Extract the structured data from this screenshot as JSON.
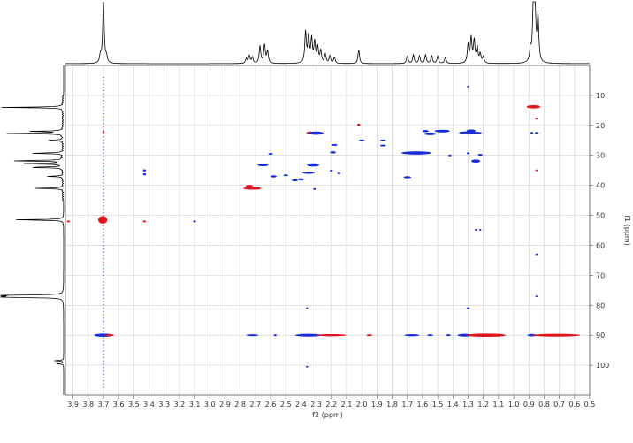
{
  "chart_data": {
    "type": "hsqc-2d-nmr",
    "xlabel": "f2 (ppm)",
    "ylabel": "f1 (ppm)",
    "xlim": [
      3.95,
      0.5
    ],
    "ylim": [
      0,
      110
    ],
    "x_ticks": [
      "3.9",
      "3.8",
      "3.7",
      "3.6",
      "3.5",
      "3.4",
      "3.3",
      "3.2",
      "3.1",
      "3.0",
      "2.9",
      "2.8",
      "2.7",
      "2.6",
      "2.5",
      "2.4",
      "2.3",
      "2.2",
      "2.1",
      "2.0",
      "1.9",
      "1.8",
      "1.7",
      "1.6",
      "1.5",
      "1.4",
      "1.3",
      "1.2",
      "1.1",
      "1.0",
      "0.9",
      "0.8",
      "0.7",
      "0.6",
      "0.5"
    ],
    "y_ticks": [
      "10",
      "20",
      "30",
      "40",
      "50",
      "60",
      "70",
      "80",
      "90",
      "100"
    ],
    "grid": true,
    "colors": {
      "positive": "#1a2ed8",
      "negative": "#e0141c",
      "trace": "#000000",
      "grid": "#cfcfcf"
    },
    "proton_spectrum_peaks": [
      {
        "ppm": 3.7,
        "h": 1.0
      },
      {
        "ppm": 3.72,
        "h": 0.12
      },
      {
        "ppm": 3.68,
        "h": 0.1
      },
      {
        "ppm": 2.76,
        "h": 0.08
      },
      {
        "ppm": 2.74,
        "h": 0.12
      },
      {
        "ppm": 2.72,
        "h": 0.1
      },
      {
        "ppm": 2.67,
        "h": 0.28
      },
      {
        "ppm": 2.64,
        "h": 0.3
      },
      {
        "ppm": 2.62,
        "h": 0.2
      },
      {
        "ppm": 2.37,
        "h": 0.5
      },
      {
        "ppm": 2.35,
        "h": 0.42
      },
      {
        "ppm": 2.33,
        "h": 0.38
      },
      {
        "ppm": 2.31,
        "h": 0.33
      },
      {
        "ppm": 2.29,
        "h": 0.25
      },
      {
        "ppm": 2.27,
        "h": 0.2
      },
      {
        "ppm": 2.24,
        "h": 0.14
      },
      {
        "ppm": 2.21,
        "h": 0.12
      },
      {
        "ppm": 2.18,
        "h": 0.1
      },
      {
        "ppm": 2.02,
        "h": 0.22
      },
      {
        "ppm": 1.7,
        "h": 0.12
      },
      {
        "ppm": 1.66,
        "h": 0.14
      },
      {
        "ppm": 1.62,
        "h": 0.12
      },
      {
        "ppm": 1.58,
        "h": 0.14
      },
      {
        "ppm": 1.54,
        "h": 0.13
      },
      {
        "ppm": 1.5,
        "h": 0.12
      },
      {
        "ppm": 1.45,
        "h": 0.1
      },
      {
        "ppm": 1.3,
        "h": 0.3
      },
      {
        "ppm": 1.28,
        "h": 0.4
      },
      {
        "ppm": 1.26,
        "h": 0.36
      },
      {
        "ppm": 1.24,
        "h": 0.25
      },
      {
        "ppm": 1.22,
        "h": 0.15
      },
      {
        "ppm": 1.2,
        "h": 0.1
      },
      {
        "ppm": 0.89,
        "h": 0.2
      },
      {
        "ppm": 0.87,
        "h": 1.0
      },
      {
        "ppm": 0.86,
        "h": 0.9
      },
      {
        "ppm": 0.84,
        "h": 0.75
      }
    ],
    "carbon_spectrum_peaks": [
      {
        "ppm": 14.0,
        "h": 1.0
      },
      {
        "ppm": 22.0,
        "h": 0.55
      },
      {
        "ppm": 22.7,
        "h": 0.9
      },
      {
        "ppm": 25.0,
        "h": 0.3
      },
      {
        "ppm": 29.3,
        "h": 0.55
      },
      {
        "ppm": 31.8,
        "h": 0.9
      },
      {
        "ppm": 32.8,
        "h": 0.8
      },
      {
        "ppm": 34.0,
        "h": 0.6
      },
      {
        "ppm": 37.0,
        "h": 0.25
      },
      {
        "ppm": 41.0,
        "h": 0.45
      },
      {
        "ppm": 51.5,
        "h": 0.85
      },
      {
        "ppm": 76.7,
        "h": 1.05
      },
      {
        "ppm": 77.0,
        "h": 1.05
      },
      {
        "ppm": 77.3,
        "h": 1.05
      },
      {
        "ppm": 98.5,
        "h": 0.15
      },
      {
        "ppm": 99.5,
        "h": 0.12
      }
    ],
    "cross_peaks": [
      {
        "x": 3.705,
        "y": 51.5,
        "w": 0.06,
        "h": 1.4,
        "sign": "negative"
      },
      {
        "x": 3.7,
        "y": 90.0,
        "w": 0.12,
        "h": 0.6,
        "sign": "positive"
      },
      {
        "x": 3.66,
        "y": 90.0,
        "w": 0.06,
        "h": 0.4,
        "sign": "negative"
      },
      {
        "x": 3.7,
        "y": 22.2,
        "w": 0.01,
        "h": 0.4,
        "sign": "negative"
      },
      {
        "x": 3.93,
        "y": 52.0,
        "w": 0.02,
        "h": 0.3,
        "sign": "negative"
      },
      {
        "x": 3.43,
        "y": 52.0,
        "w": 0.02,
        "h": 0.3,
        "sign": "negative"
      },
      {
        "x": 3.1,
        "y": 52.0,
        "w": 0.02,
        "h": 0.3,
        "sign": "positive"
      },
      {
        "x": 3.43,
        "y": 35.0,
        "w": 0.02,
        "h": 0.4,
        "sign": "positive"
      },
      {
        "x": 3.43,
        "y": 36.3,
        "w": 0.02,
        "h": 0.4,
        "sign": "positive"
      },
      {
        "x": 2.74,
        "y": 40.2,
        "w": 0.05,
        "h": 0.4,
        "sign": "negative"
      },
      {
        "x": 2.72,
        "y": 41.0,
        "w": 0.12,
        "h": 0.5,
        "sign": "negative"
      },
      {
        "x": 2.65,
        "y": 33.2,
        "w": 0.07,
        "h": 0.5,
        "sign": "positive"
      },
      {
        "x": 2.6,
        "y": 29.5,
        "w": 0.03,
        "h": 0.3,
        "sign": "positive"
      },
      {
        "x": 2.58,
        "y": 37.0,
        "w": 0.04,
        "h": 0.4,
        "sign": "positive"
      },
      {
        "x": 2.5,
        "y": 36.6,
        "w": 0.03,
        "h": 0.3,
        "sign": "positive"
      },
      {
        "x": 2.44,
        "y": 38.3,
        "w": 0.04,
        "h": 0.4,
        "sign": "positive"
      },
      {
        "x": 2.4,
        "y": 38.0,
        "w": 0.04,
        "h": 0.4,
        "sign": "positive"
      },
      {
        "x": 2.35,
        "y": 35.8,
        "w": 0.08,
        "h": 0.4,
        "sign": "positive"
      },
      {
        "x": 2.32,
        "y": 33.2,
        "w": 0.08,
        "h": 0.6,
        "sign": "positive"
      },
      {
        "x": 2.34,
        "y": 22.5,
        "w": 0.05,
        "h": 0.5,
        "sign": "negative"
      },
      {
        "x": 2.3,
        "y": 22.6,
        "w": 0.1,
        "h": 0.6,
        "sign": "positive"
      },
      {
        "x": 2.31,
        "y": 41.2,
        "w": 0.02,
        "h": 0.3,
        "sign": "positive"
      },
      {
        "x": 2.19,
        "y": 29.0,
        "w": 0.04,
        "h": 0.4,
        "sign": "positive"
      },
      {
        "x": 2.18,
        "y": 26.5,
        "w": 0.04,
        "h": 0.3,
        "sign": "positive"
      },
      {
        "x": 2.15,
        "y": 36.0,
        "w": 0.02,
        "h": 0.3,
        "sign": "positive"
      },
      {
        "x": 2.2,
        "y": 35.1,
        "w": 0.02,
        "h": 0.3,
        "sign": "positive"
      },
      {
        "x": 2.02,
        "y": 19.8,
        "w": 0.02,
        "h": 0.4,
        "sign": "negative"
      },
      {
        "x": 2.0,
        "y": 25.0,
        "w": 0.04,
        "h": 0.3,
        "sign": "positive"
      },
      {
        "x": 1.86,
        "y": 25.0,
        "w": 0.04,
        "h": 0.3,
        "sign": "positive"
      },
      {
        "x": 1.86,
        "y": 26.7,
        "w": 0.04,
        "h": 0.3,
        "sign": "positive"
      },
      {
        "x": 1.64,
        "y": 29.2,
        "w": 0.2,
        "h": 0.6,
        "sign": "positive"
      },
      {
        "x": 1.7,
        "y": 37.3,
        "w": 0.05,
        "h": 0.4,
        "sign": "positive"
      },
      {
        "x": 1.55,
        "y": 22.8,
        "w": 0.08,
        "h": 0.5,
        "sign": "positive"
      },
      {
        "x": 1.58,
        "y": 21.9,
        "w": 0.04,
        "h": 0.4,
        "sign": "positive"
      },
      {
        "x": 1.47,
        "y": 21.9,
        "w": 0.1,
        "h": 0.5,
        "sign": "positive"
      },
      {
        "x": 1.42,
        "y": 30.0,
        "w": 0.02,
        "h": 0.3,
        "sign": "positive"
      },
      {
        "x": 1.3,
        "y": 22.5,
        "w": 0.12,
        "h": 0.6,
        "sign": "positive"
      },
      {
        "x": 1.28,
        "y": 21.8,
        "w": 0.06,
        "h": 0.5,
        "sign": "positive"
      },
      {
        "x": 1.24,
        "y": 22.5,
        "w": 0.06,
        "h": 0.4,
        "sign": "positive"
      },
      {
        "x": 1.25,
        "y": 31.9,
        "w": 0.06,
        "h": 0.6,
        "sign": "positive"
      },
      {
        "x": 1.3,
        "y": 29.3,
        "w": 0.02,
        "h": 0.3,
        "sign": "positive"
      },
      {
        "x": 1.22,
        "y": 29.8,
        "w": 0.03,
        "h": 0.3,
        "sign": "positive"
      },
      {
        "x": 1.3,
        "y": 7.0,
        "w": 0.01,
        "h": 0.3,
        "sign": "positive"
      },
      {
        "x": 1.3,
        "y": 81.0,
        "w": 0.02,
        "h": 0.3,
        "sign": "positive"
      },
      {
        "x": 1.25,
        "y": 54.8,
        "w": 0.01,
        "h": 0.3,
        "sign": "positive"
      },
      {
        "x": 1.22,
        "y": 54.8,
        "w": 0.01,
        "h": 0.3,
        "sign": "positive"
      },
      {
        "x": 0.87,
        "y": 13.8,
        "w": 0.09,
        "h": 0.6,
        "sign": "negative"
      },
      {
        "x": 0.88,
        "y": 22.5,
        "w": 0.02,
        "h": 0.3,
        "sign": "positive"
      },
      {
        "x": 0.85,
        "y": 22.5,
        "w": 0.02,
        "h": 0.3,
        "sign": "positive"
      },
      {
        "x": 0.85,
        "y": 17.8,
        "w": 0.01,
        "h": 0.3,
        "sign": "negative"
      },
      {
        "x": 0.85,
        "y": 35.0,
        "w": 0.01,
        "h": 0.3,
        "sign": "negative"
      },
      {
        "x": 0.85,
        "y": 63.0,
        "w": 0.01,
        "h": 0.3,
        "sign": "positive"
      },
      {
        "x": 0.85,
        "y": 77.0,
        "w": 0.01,
        "h": 0.3,
        "sign": "positive"
      },
      {
        "x": 2.72,
        "y": 90.0,
        "w": 0.08,
        "h": 0.35,
        "sign": "positive"
      },
      {
        "x": 2.57,
        "y": 90.0,
        "w": 0.02,
        "h": 0.3,
        "sign": "positive"
      },
      {
        "x": 2.35,
        "y": 90.0,
        "w": 0.18,
        "h": 0.5,
        "sign": "positive"
      },
      {
        "x": 2.2,
        "y": 90.0,
        "w": 0.2,
        "h": 0.4,
        "sign": "negative"
      },
      {
        "x": 1.95,
        "y": 90.0,
        "w": 0.04,
        "h": 0.3,
        "sign": "negative"
      },
      {
        "x": 1.67,
        "y": 90.0,
        "w": 0.1,
        "h": 0.4,
        "sign": "positive"
      },
      {
        "x": 1.55,
        "y": 90.0,
        "w": 0.04,
        "h": 0.3,
        "sign": "positive"
      },
      {
        "x": 1.43,
        "y": 90.0,
        "w": 0.03,
        "h": 0.3,
        "sign": "positive"
      },
      {
        "x": 1.32,
        "y": 90.0,
        "w": 0.1,
        "h": 0.5,
        "sign": "positive"
      },
      {
        "x": 1.18,
        "y": 90.0,
        "w": 0.26,
        "h": 0.6,
        "sign": "negative"
      },
      {
        "x": 0.88,
        "y": 90.0,
        "w": 0.06,
        "h": 0.45,
        "sign": "positive"
      },
      {
        "x": 0.72,
        "y": 90.0,
        "w": 0.32,
        "h": 0.5,
        "sign": "negative"
      },
      {
        "x": 2.36,
        "y": 81.0,
        "w": 0.01,
        "h": 0.3,
        "sign": "positive"
      },
      {
        "x": 2.36,
        "y": 100.5,
        "w": 0.01,
        "h": 0.3,
        "sign": "positive"
      }
    ],
    "methoxy_column_streak": {
      "x": 3.7,
      "y_from": 4,
      "y_to": 108
    }
  }
}
